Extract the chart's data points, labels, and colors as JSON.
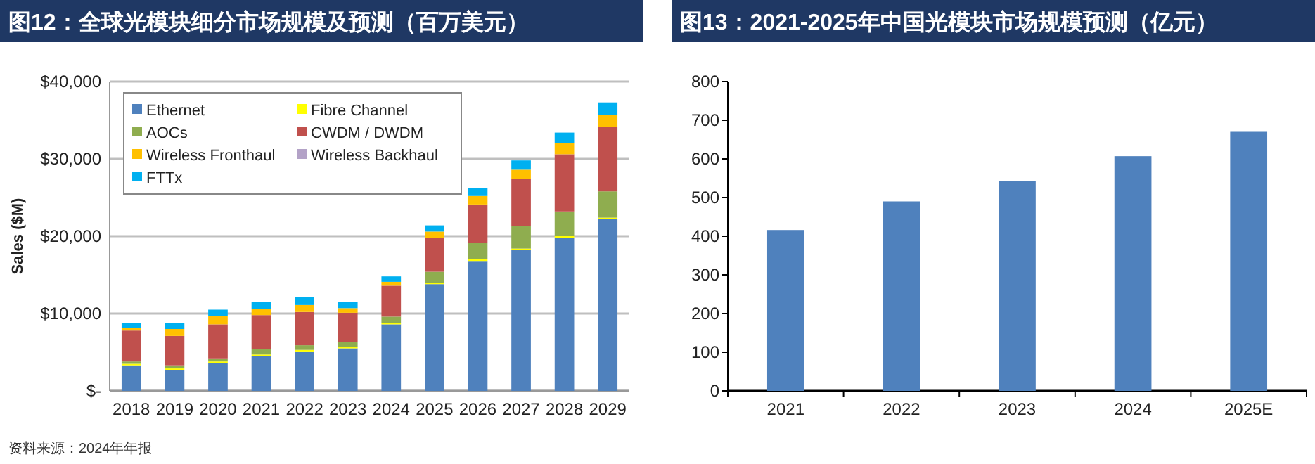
{
  "chart_data": [
    {
      "type": "bar",
      "title": "图12：全球光模块细分市场规模及预测（百万美元）",
      "ylabel": "Sales ($M)",
      "stacked": true,
      "grid": "y",
      "legend": "top left",
      "categories": [
        "2018",
        "2019",
        "2020",
        "2021",
        "2022",
        "2023",
        "2024",
        "2025",
        "2026",
        "2027",
        "2028",
        "2029"
      ],
      "series": [
        {
          "name": "Ethernet",
          "color": "#4f81bd",
          "values": [
            3300,
            2700,
            3600,
            4500,
            5100,
            5500,
            8600,
            13800,
            16800,
            18200,
            19800,
            22200
          ]
        },
        {
          "name": "Fibre Channel",
          "color": "#ffff00",
          "values": [
            200,
            200,
            200,
            200,
            200,
            200,
            200,
            200,
            200,
            200,
            200,
            200
          ]
        },
        {
          "name": "AOCs",
          "color": "#8fad4f",
          "values": [
            300,
            400,
            400,
            700,
            600,
            600,
            800,
            1400,
            2100,
            2900,
            3200,
            3400
          ]
        },
        {
          "name": "CWDM / DWDM",
          "color": "#c0504d",
          "values": [
            4000,
            3800,
            4400,
            4400,
            4300,
            3800,
            4000,
            4400,
            5000,
            6100,
            7400,
            8300
          ]
        },
        {
          "name": "Wireless Fronthaul",
          "color": "#ffc000",
          "values": [
            300,
            900,
            1100,
            800,
            900,
            600,
            500,
            800,
            1100,
            1200,
            1400,
            1600
          ]
        },
        {
          "name": "Wireless Backhaul",
          "color": "#b3a2c7",
          "values": [
            null,
            null,
            null,
            null,
            null,
            null,
            null,
            null,
            null,
            null,
            null,
            null
          ]
        },
        {
          "name": "FTTx",
          "color": "#00b0f0",
          "values": [
            700,
            800,
            800,
            900,
            1000,
            800,
            700,
            800,
            1000,
            1200,
            1400,
            1600
          ]
        }
      ],
      "ylim": [
        0,
        40000
      ],
      "yticks": [
        {
          "value": 0,
          "label": "$-"
        },
        {
          "value": 10000,
          "label": "$10,000"
        },
        {
          "value": 20000,
          "label": "$20,000"
        },
        {
          "value": 30000,
          "label": "$30,000"
        },
        {
          "value": 40000,
          "label": "$40,000"
        }
      ],
      "annotations": [
        "资料来源：2024年年报"
      ]
    },
    {
      "type": "bar",
      "title": "图13：2021-2025年中国光模块市场规模预测（亿元）",
      "categories": [
        "2021",
        "2022",
        "2023",
        "2024",
        "2025E"
      ],
      "values": [
        416,
        490,
        542,
        607,
        670
      ],
      "color": "#4f81bd",
      "ylim": [
        0,
        800
      ],
      "yticks": [
        0,
        100,
        200,
        300,
        400,
        500,
        600,
        700,
        800
      ]
    }
  ]
}
